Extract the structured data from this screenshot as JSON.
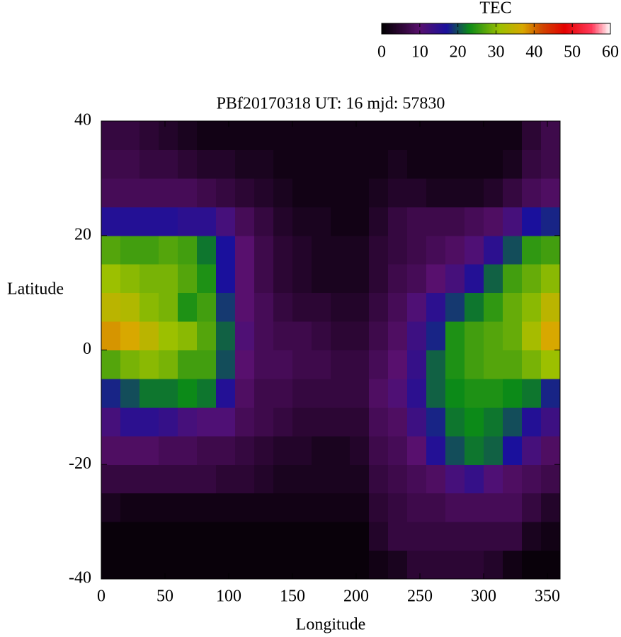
{
  "chart_data": {
    "type": "heatmap",
    "title": "PBf20170318  UT: 16  mjd: 57830",
    "x_label": "Longitude",
    "y_label": "Latitude",
    "colorbar_label": "TEC",
    "xlim": [
      0,
      360
    ],
    "ylim": [
      -40,
      40
    ],
    "xticks": [
      0,
      50,
      100,
      150,
      200,
      250,
      300,
      350
    ],
    "yticks": [
      -40,
      -20,
      0,
      20,
      40
    ],
    "clim": [
      0,
      60
    ],
    "cticks": [
      0,
      10,
      20,
      30,
      40,
      50,
      60
    ],
    "colormap": [
      {
        "value": 0,
        "color": "#000000"
      },
      {
        "value": 5,
        "color": "#2c0634"
      },
      {
        "value": 10,
        "color": "#58106e"
      },
      {
        "value": 17,
        "color": "#1a109c"
      },
      {
        "value": 23,
        "color": "#0c8a18"
      },
      {
        "value": 31,
        "color": "#9cc000"
      },
      {
        "value": 37,
        "color": "#d8a800"
      },
      {
        "value": 42,
        "color": "#d04800"
      },
      {
        "value": 48,
        "color": "#e40000"
      },
      {
        "value": 55,
        "color": "#ff3858"
      },
      {
        "value": 60,
        "color": "#ffffff"
      }
    ],
    "xbins": [
      0,
      15,
      30,
      45,
      60,
      75,
      90,
      105,
      120,
      135,
      150,
      165,
      180,
      195,
      210,
      225,
      240,
      255,
      270,
      285,
      300,
      315,
      330,
      345,
      360
    ],
    "ybins": [
      -40,
      -35,
      -30,
      -25,
      -20,
      -15,
      -10,
      -5,
      0,
      5,
      10,
      15,
      20,
      25,
      30,
      35,
      40
    ],
    "values": [
      [
        1,
        1,
        1,
        1,
        1,
        1,
        1,
        1,
        1,
        1,
        1,
        1,
        1,
        1,
        2,
        3,
        5,
        5,
        5,
        5,
        4,
        2,
        1,
        1
      ],
      [
        1,
        1,
        1,
        1,
        1,
        1,
        1,
        1,
        1,
        1,
        1,
        1,
        1,
        1,
        4,
        6,
        6,
        6,
        6,
        6,
        6,
        6,
        3,
        2
      ],
      [
        3,
        2,
        2,
        2,
        2,
        2,
        2,
        2,
        2,
        2,
        2,
        2,
        2,
        2,
        5,
        6,
        7,
        7,
        8,
        8,
        8,
        8,
        6,
        4
      ],
      [
        6,
        6,
        6,
        6,
        6,
        6,
        5,
        5,
        4,
        3,
        3,
        3,
        3,
        3,
        6,
        7,
        8,
        9,
        12,
        14,
        11,
        9,
        8,
        7
      ],
      [
        9,
        9,
        9,
        8,
        8,
        7,
        7,
        6,
        5,
        4,
        4,
        3,
        3,
        4,
        7,
        8,
        10,
        16,
        20,
        22,
        21,
        17,
        12,
        9
      ],
      [
        12,
        15,
        15,
        14,
        12,
        11,
        11,
        8,
        7,
        6,
        5,
        5,
        5,
        5,
        8,
        9,
        13,
        18,
        22,
        23,
        22,
        20,
        16,
        13
      ],
      [
        18,
        20,
        22,
        22,
        23,
        22,
        16,
        9,
        7,
        7,
        6,
        6,
        6,
        6,
        9,
        11,
        15,
        21,
        23,
        24,
        24,
        23,
        22,
        18
      ],
      [
        27,
        29,
        30,
        29,
        26,
        26,
        20,
        10,
        8,
        8,
        7,
        7,
        6,
        6,
        8,
        10,
        14,
        21,
        24,
        26,
        27,
        27,
        29,
        31
      ],
      [
        38,
        37,
        34,
        31,
        30,
        27,
        21,
        11,
        8,
        7,
        7,
        6,
        5,
        5,
        7,
        9,
        13,
        18,
        24,
        26,
        27,
        28,
        32,
        37
      ],
      [
        34,
        33,
        30,
        29,
        24,
        26,
        19,
        10,
        8,
        6,
        5,
        5,
        4,
        4,
        6,
        8,
        11,
        15,
        19,
        22,
        25,
        28,
        30,
        34
      ],
      [
        31,
        30,
        29,
        29,
        27,
        24,
        17,
        10,
        7,
        5,
        4,
        3,
        3,
        3,
        5,
        7,
        8,
        10,
        12,
        16,
        21,
        26,
        28,
        30
      ],
      [
        27,
        26,
        26,
        27,
        26,
        22,
        17,
        10,
        7,
        5,
        4,
        3,
        3,
        3,
        5,
        6,
        7,
        8,
        9,
        11,
        15,
        20,
        25,
        26
      ],
      [
        16,
        16,
        16,
        16,
        15,
        15,
        12,
        8,
        6,
        4,
        3,
        3,
        2,
        2,
        4,
        6,
        7,
        7,
        7,
        8,
        9,
        12,
        17,
        18
      ],
      [
        8,
        8,
        8,
        8,
        8,
        7,
        6,
        5,
        4,
        3,
        2,
        2,
        2,
        2,
        3,
        4,
        4,
        3,
        3,
        3,
        4,
        6,
        8,
        9
      ],
      [
        7,
        7,
        6,
        6,
        5,
        4,
        4,
        3,
        3,
        2,
        2,
        2,
        2,
        2,
        2,
        3,
        2,
        2,
        2,
        2,
        2,
        3,
        6,
        7
      ],
      [
        6,
        6,
        5,
        4,
        3,
        2,
        2,
        2,
        2,
        2,
        2,
        2,
        2,
        2,
        2,
        2,
        2,
        2,
        2,
        2,
        2,
        2,
        5,
        7
      ]
    ]
  }
}
